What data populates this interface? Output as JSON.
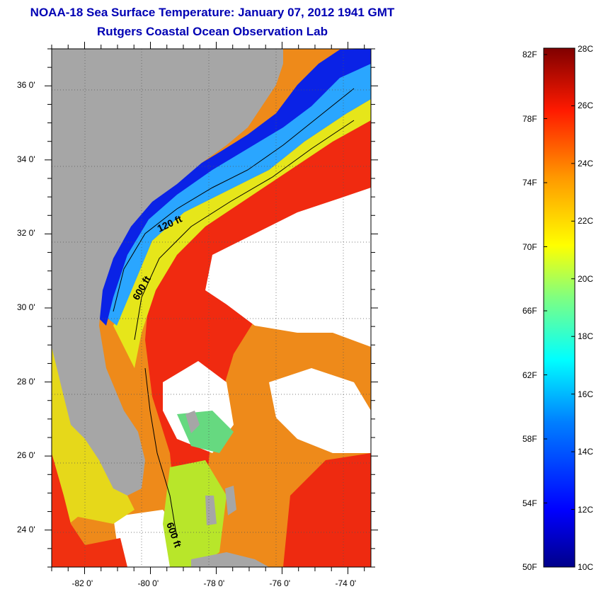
{
  "title": "NOAA-18 Sea Surface Temperature:  January 07, 2012 1941 GMT",
  "subtitle": "Rutgers Coastal Ocean Observation Lab",
  "map": {
    "lat_range": [
      23,
      37
    ],
    "lon_range": [
      -83,
      -73.3
    ],
    "lat_ticks": [
      {
        "value": 36,
        "label": "36 0'"
      },
      {
        "value": 34,
        "label": "34 0'"
      },
      {
        "value": 32,
        "label": "32 0'"
      },
      {
        "value": 30,
        "label": "30 0'"
      },
      {
        "value": 28,
        "label": "28 0'"
      },
      {
        "value": 26,
        "label": "26 0'"
      },
      {
        "value": 24,
        "label": "24 0'"
      }
    ],
    "lon_ticks": [
      {
        "value": -82,
        "label": "-82 0'"
      },
      {
        "value": -80,
        "label": "-80 0'"
      },
      {
        "value": -78,
        "label": "-78 0'"
      },
      {
        "value": -76,
        "label": "-76 0'"
      },
      {
        "value": -74,
        "label": "-74 0'"
      }
    ],
    "contour_labels": [
      {
        "text": "120 ft"
      },
      {
        "text": "600 ft"
      },
      {
        "text": "600 ft"
      }
    ],
    "colors": {
      "land": "#a6a6a6",
      "cloud": "#ffffff"
    }
  },
  "colorbar": {
    "range_c": [
      10,
      28
    ],
    "celsius_labels": [
      "28C",
      "26C",
      "24C",
      "22C",
      "20C",
      "18C",
      "16C",
      "14C",
      "12C",
      "10C"
    ],
    "fahrenheit_labels": [
      "82F",
      "78F",
      "74F",
      "70F",
      "66F",
      "62F",
      "58F",
      "54F",
      "50F"
    ]
  }
}
